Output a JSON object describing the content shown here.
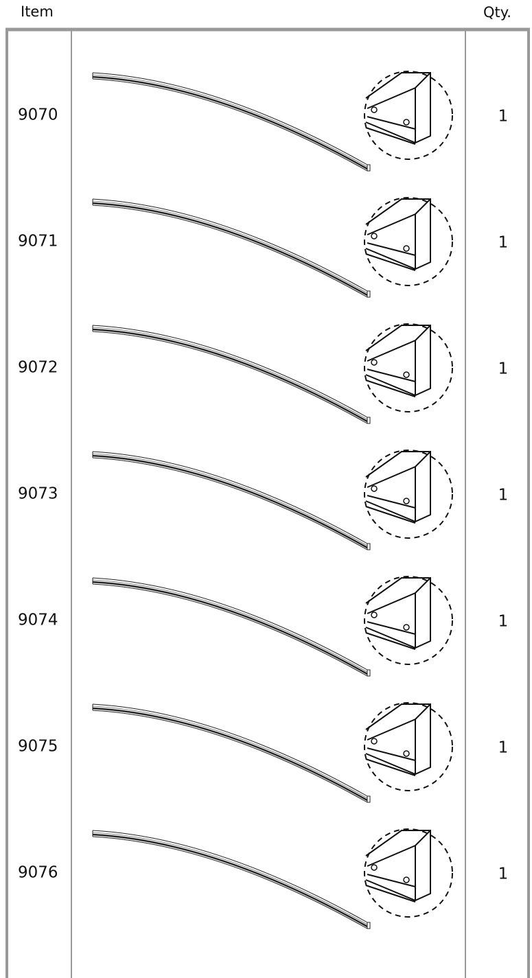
{
  "header": {
    "item": "Item",
    "qty": "Qty."
  },
  "rows": [
    {
      "item": "9070",
      "qty": 1
    },
    {
      "item": "9071",
      "qty": 1
    },
    {
      "item": "9072",
      "qty": 1
    },
    {
      "item": "9073",
      "qty": 1
    },
    {
      "item": "9074",
      "qty": 1
    },
    {
      "item": "9075",
      "qty": 1
    },
    {
      "item": "9076",
      "qty": 1
    }
  ]
}
